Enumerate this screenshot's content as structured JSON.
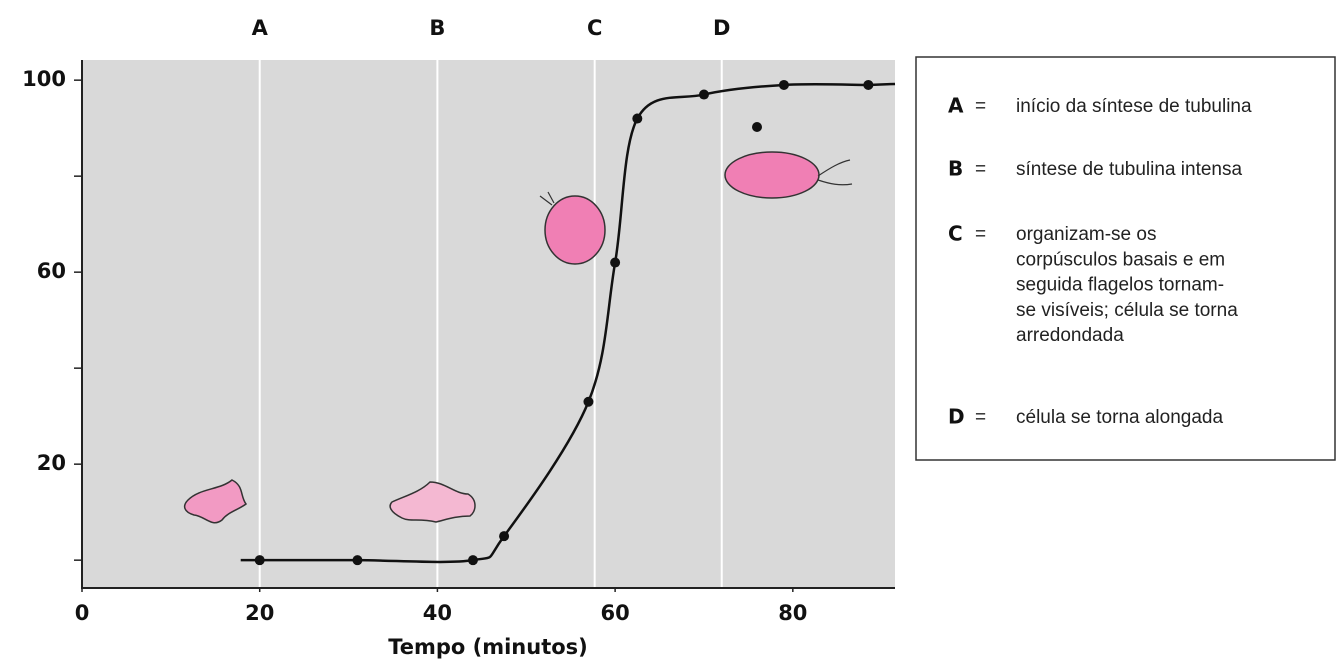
{
  "chart_data": {
    "type": "line",
    "x_label": "Tempo (minutos)",
    "x": [
      20,
      31,
      44,
      47.5,
      57,
      60,
      62.5,
      70,
      79,
      88.5
    ],
    "series": [
      {
        "color": "#111111",
        "values": [
          0,
          0,
          0,
          5,
          33,
          62,
          92,
          97,
          99,
          99
        ]
      }
    ],
    "xlim": [
      0,
      91.5
    ],
    "ylim": [
      -5.8,
      104.2
    ],
    "xticks": [
      0,
      20,
      40,
      60,
      80
    ],
    "yticks": [
      20,
      60,
      100
    ],
    "yminor_ticks": [
      0,
      40,
      80
    ],
    "stage_lines": [
      {
        "label": "A",
        "x": 20
      },
      {
        "label": "B",
        "x": 40
      },
      {
        "label": "C",
        "x": 57.7
      },
      {
        "label": "D",
        "x": 72
      }
    ],
    "legend": [
      {
        "key": "A",
        "sep": "=",
        "lines": [
          "início da síntese de tubulina"
        ]
      },
      {
        "key": "B",
        "sep": "=",
        "lines": [
          "síntese de tubulina intensa"
        ]
      },
      {
        "key": "C",
        "sep": "=",
        "lines": [
          "organizam-se os",
          "corpúsculos basais e em",
          "seguida flagelos tornam-",
          "se visíveis; célula se torna",
          "arredondada"
        ]
      },
      {
        "key": "D",
        "sep": "=",
        "lines": [
          "célula se torna alongada"
        ]
      }
    ]
  }
}
